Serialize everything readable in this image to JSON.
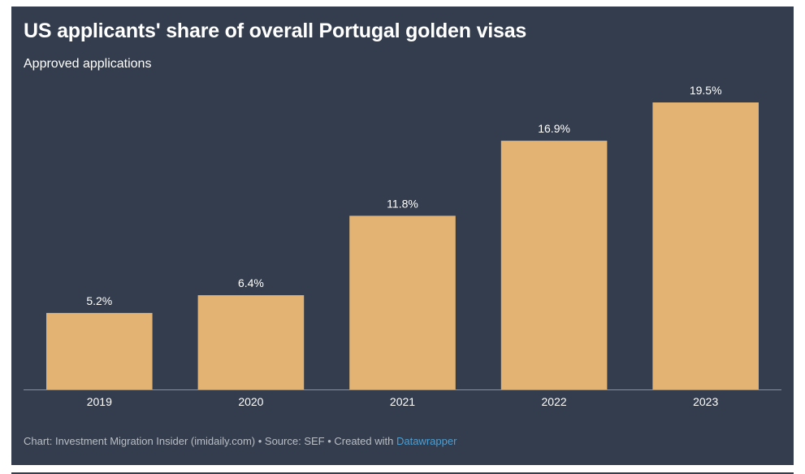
{
  "colors": {
    "background": "#333d4d",
    "bar": "#e2b373",
    "axis": "#8a9099",
    "text": "#ffffff",
    "footer_text": "#b9bec6",
    "link": "#4b9fd5"
  },
  "footer": {
    "prefix": "Chart: Investment Migration Insider (imidaily.com) • Source: SEF • Created with ",
    "link_text": "Datawrapper"
  },
  "chart_data": {
    "type": "bar",
    "title": "US applicants' share of overall Portugal golden visas",
    "subtitle": "Approved applications",
    "xlabel": "",
    "ylabel": "",
    "categories": [
      "2019",
      "2020",
      "2021",
      "2022",
      "2023"
    ],
    "values": [
      5.2,
      6.4,
      11.8,
      16.9,
      19.5
    ],
    "value_labels": [
      "5.2%",
      "6.4%",
      "11.8%",
      "16.9%",
      "19.5%"
    ],
    "unit": "%",
    "ylim": [
      0,
      19.5
    ],
    "grid": false,
    "legend": "none"
  }
}
